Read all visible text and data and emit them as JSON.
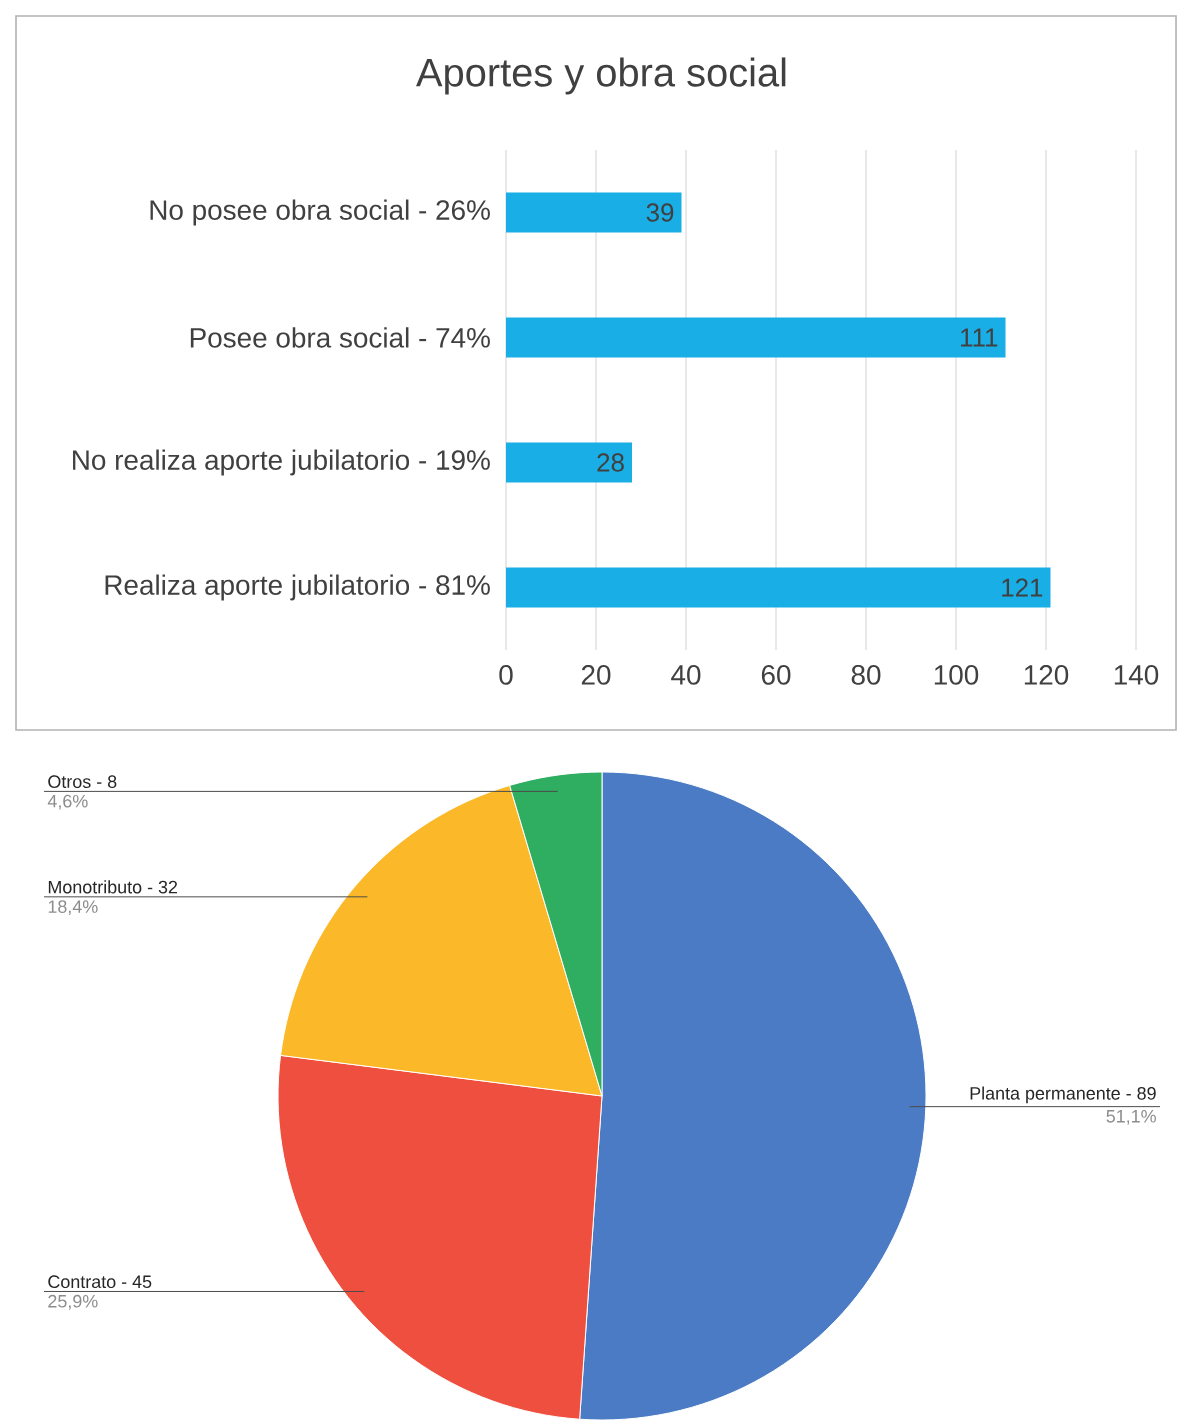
{
  "chart_data": [
    {
      "type": "bar",
      "title": "Aportes y obra social",
      "orientation": "horizontal",
      "categories": [
        "No posee obra social - 26%",
        "Posee obra social - 74%",
        "No realiza aporte jubilatorio - 19%",
        "Realiza aporte jubilatorio - 81%"
      ],
      "values": [
        39,
        111,
        28,
        121
      ],
      "color": "#1aaee6",
      "data_labels": true,
      "xlim": [
        0,
        140
      ],
      "xticks": [
        0,
        20,
        40,
        60,
        80,
        100,
        120,
        140
      ],
      "grid": "x"
    },
    {
      "type": "pie",
      "categories": [
        "Planta permanente - 89",
        "Contrato - 45",
        "Monotributo - 32",
        "Otros - 8"
      ],
      "values": [
        51.1,
        25.9,
        18.4,
        4.6
      ],
      "value_labels": [
        "51,1%",
        "25,9%",
        "18,4%",
        "4,6%"
      ],
      "colors": [
        "#4a7bc4",
        "#ef4f3e",
        "#fbb829",
        "#2fae62"
      ]
    }
  ]
}
